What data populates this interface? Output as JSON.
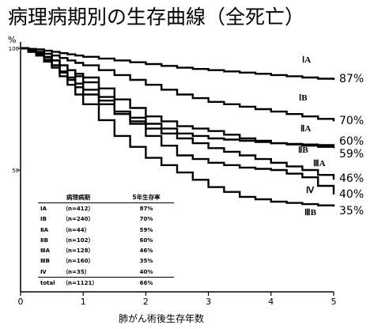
{
  "title": "病理病期別の生存曲線（全死亡）",
  "chart_data": {
    "type": "line",
    "title": "病理病期別の生存曲線（全死亡）",
    "xlabel": "肺がん術後生存年数",
    "ylabel": "%",
    "xlim": [
      0,
      5
    ],
    "ylim": [
      0,
      100
    ],
    "x_ticks": [
      "0",
      "1",
      "2",
      "3",
      "4",
      "5"
    ],
    "y_ticks": [
      {
        "value": 100,
        "label": "100"
      },
      {
        "value": 50,
        "label": "50"
      }
    ],
    "grid": false,
    "series": [
      {
        "name": "ⅠA",
        "label": "ⅠA",
        "end_label": "87%",
        "x": [
          0,
          0.25,
          0.5,
          0.75,
          1.0,
          1.5,
          2.0,
          2.5,
          3.0,
          3.5,
          4.0,
          4.5,
          5.0
        ],
        "y": [
          100,
          99.5,
          98.5,
          97.5,
          96.5,
          95,
          93.5,
          92,
          91,
          90,
          89,
          88,
          87
        ]
      },
      {
        "name": "ⅠB",
        "label": "ⅠB",
        "end_label": "70%",
        "x": [
          0,
          0.25,
          0.5,
          0.75,
          1.0,
          1.5,
          2.0,
          2.5,
          3.0,
          3.5,
          4.0,
          4.5,
          5.0
        ],
        "y": [
          100,
          98.5,
          97,
          95,
          93,
          89,
          85,
          81,
          78,
          76,
          74,
          72,
          70
        ]
      },
      {
        "name": "ⅡA",
        "label": "ⅡA",
        "end_label": "59%",
        "x": [
          0,
          0.25,
          0.5,
          0.75,
          1.0,
          1.5,
          2.0,
          2.5,
          3.0,
          3.5,
          4.0,
          4.5,
          5.0
        ],
        "y": [
          100,
          97.5,
          95,
          91,
          88,
          79,
          72,
          68,
          66,
          63,
          61,
          60,
          59
        ]
      },
      {
        "name": "ⅡB",
        "label": "ⅡB",
        "end_label": "60%",
        "x": [
          0,
          0.25,
          0.5,
          0.75,
          1.0,
          1.5,
          2.0,
          2.5,
          3.0,
          3.5,
          4.0,
          4.5,
          5.0
        ],
        "y": [
          100,
          97,
          93,
          88,
          83,
          74,
          69,
          65,
          63,
          62,
          61,
          60.5,
          60
        ]
      },
      {
        "name": "ⅢA",
        "label": "ⅢA",
        "end_label": "46%",
        "x": [
          0,
          0.25,
          0.5,
          0.75,
          1.0,
          1.5,
          2.0,
          2.5,
          3.0,
          3.5,
          4.0,
          4.5,
          5.0
        ],
        "y": [
          100,
          97.5,
          93,
          87,
          81,
          73,
          67,
          63,
          59,
          56,
          53,
          50,
          46
        ]
      },
      {
        "name": "ⅢB",
        "label": "ⅢB",
        "end_label": "35%",
        "x": [
          0,
          0.25,
          0.5,
          0.75,
          1.0,
          1.5,
          2.0,
          2.5,
          3.0,
          3.5,
          4.0,
          4.5,
          5.0
        ],
        "y": [
          100,
          97,
          92,
          85,
          77,
          64,
          55,
          49,
          43,
          39,
          37,
          36,
          35
        ]
      },
      {
        "name": "Ⅳ",
        "label": "Ⅳ",
        "end_label": "40%",
        "x": [
          0,
          0.25,
          0.5,
          0.75,
          1.0,
          1.5,
          2.0,
          2.5,
          3.0,
          3.5,
          4.0,
          4.5,
          5.0
        ],
        "y": [
          100,
          98,
          95,
          91,
          86,
          74,
          64,
          56,
          53,
          51,
          50,
          47,
          40
        ]
      }
    ],
    "table": {
      "headers": [
        "病理病期",
        "5年生存率"
      ],
      "rows": [
        {
          "stage": "ⅠA",
          "n": "（n=412）",
          "rate": "87%"
        },
        {
          "stage": "ⅠB",
          "n": "（n=240）",
          "rate": "70%"
        },
        {
          "stage": "ⅡA",
          "n": "（n=44）",
          "rate": "59%"
        },
        {
          "stage": "ⅡB",
          "n": "（n=102）",
          "rate": "60%"
        },
        {
          "stage": "ⅢA",
          "n": "（n=128）",
          "rate": "46%"
        },
        {
          "stage": "ⅢB",
          "n": "（n=160）",
          "rate": "35%"
        },
        {
          "stage": "Ⅳ",
          "n": "（n=35）",
          "rate": "40%"
        }
      ],
      "total": {
        "stage": "total",
        "n": "（n=1121）",
        "rate": "66%"
      }
    }
  }
}
